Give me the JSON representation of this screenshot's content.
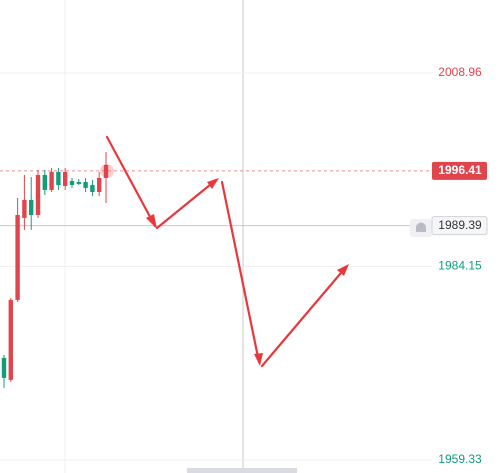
{
  "chart_data": {
    "type": "candlestick",
    "categories": [
      null,
      null,
      null,
      null,
      null,
      null,
      null,
      null,
      null,
      null,
      null,
      null,
      null,
      null,
      null,
      null
    ],
    "open": [
      1972.42,
      1969.6,
      1979.86,
      1990.37,
      1992.68,
      1990.75,
      1995.88,
      1993.96,
      1996.27,
      1994.47,
      1995.11,
      1994.98,
      1994.98,
      1994.6,
      1993.7,
      1995.5
    ],
    "high": [
      1972.81,
      1980.11,
      1992.93,
      1995.88,
      1995.62,
      1996.52,
      1996.52,
      1996.78,
      1996.78,
      1996.78,
      1995.5,
      1995.37,
      1995.5,
      1995.24,
      1996.27,
      1998.83
    ],
    "low": [
      1968.58,
      1969.34,
      1979.6,
      1988.83,
      1988.83,
      1990.37,
      1993.32,
      1993.7,
      1993.96,
      1993.96,
      1994.22,
      1994.6,
      1993.7,
      1993.19,
      1993.19,
      1992.29
    ],
    "close": [
      1969.86,
      1979.86,
      1990.75,
      1992.68,
      1990.75,
      1995.88,
      1993.96,
      1996.27,
      1994.6,
      1996.27,
      1994.6,
      1994.73,
      1994.22,
      1993.7,
      1995.5,
      1997.16
    ],
    "up_color": "#e0454b",
    "down_color": "#0f9d7a",
    "ylim": [
      1957.66,
      2018.32
    ],
    "yticks": [
      2008.96,
      1984.15,
      1959.33
    ],
    "last_price": 1996.41,
    "crosshair_price": 1989.39
  }
}
